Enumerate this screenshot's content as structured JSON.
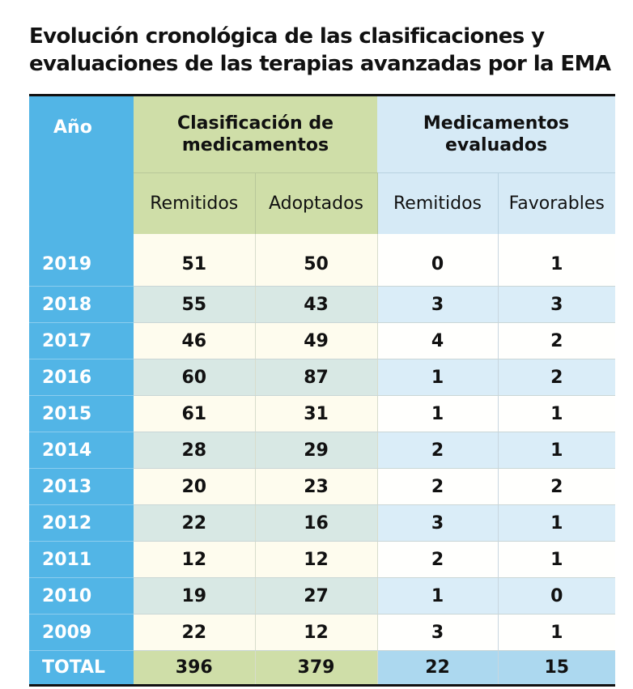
{
  "title_line1": "Evolución cronológica de las clasificaciones y",
  "title_line2": "evaluaciones de las terapias avanzadas por la EMA",
  "headers": {
    "year": "Año",
    "group1_line1": "Clasificación de",
    "group1_line2": "medicamentos",
    "group2_line1": "Medicamentos",
    "group2_line2": "evaluados",
    "sub": [
      "Remitidos",
      "Adoptados",
      "Remitidos",
      "Favorables"
    ]
  },
  "rows": [
    [
      "2019",
      "51",
      "50",
      "0",
      "1"
    ],
    [
      "2018",
      "55",
      "43",
      "3",
      "3"
    ],
    [
      "2017",
      "46",
      "49",
      "4",
      "2"
    ],
    [
      "2016",
      "60",
      "87",
      "1",
      "2"
    ],
    [
      "2015",
      "61",
      "31",
      "1",
      "1"
    ],
    [
      "2014",
      "28",
      "29",
      "2",
      "1"
    ],
    [
      "2013",
      "20",
      "23",
      "2",
      "2"
    ],
    [
      "2012",
      "22",
      "16",
      "3",
      "1"
    ],
    [
      "2011",
      "12",
      "12",
      "2",
      "1"
    ],
    [
      "2010",
      "19",
      "27",
      "1",
      "0"
    ],
    [
      "2009",
      "22",
      "12",
      "3",
      "1"
    ]
  ],
  "total": [
    "TOTAL",
    "396",
    "379",
    "22",
    "15"
  ],
  "colors": {
    "year_column": "#52b5e6",
    "classification_header": "#cfdea8",
    "evaluated_header": "#d6eaf6",
    "total_blue": "#acd8ef"
  }
}
